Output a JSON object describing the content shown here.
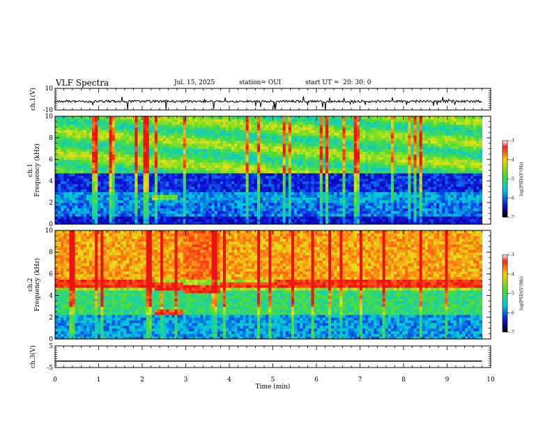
{
  "header": {
    "title": "VLF Spectra",
    "date": "Jul. 15, 2025",
    "station": "station= OUI",
    "start": "start UT =  20: 30: 0"
  },
  "chart_data": [
    {
      "type": "line",
      "panel": "ch1-waveform",
      "ylabel": "ch.1(V)",
      "ylim": [
        -10,
        10
      ],
      "yticks": [
        "10",
        "-10"
      ],
      "xlim": [
        0,
        10
      ],
      "note": "noisy waveform around -2 V with sporadic negative spikes"
    },
    {
      "type": "heatmap",
      "panel": "ch1-spectrogram",
      "ylabel_top": "ch.1",
      "ylabel": "Frequency (kHz)",
      "ylim": [
        0,
        10
      ],
      "yticks": [
        "0",
        "2",
        "4",
        "6",
        "8",
        "10"
      ],
      "xlim": [
        0,
        10
      ],
      "data_end_min": 9.8,
      "colorbar": {
        "label": "log(PSD)(V²/Hz)",
        "range": [
          -7,
          -3
        ],
        "ticks": [
          "-3",
          "-4",
          "-5",
          "-6",
          "-7"
        ]
      }
    },
    {
      "type": "heatmap",
      "panel": "ch2-spectrogram",
      "ylabel_top": "ch.2",
      "ylabel": "Frequency (kHz)",
      "ylim": [
        0,
        10
      ],
      "yticks": [
        "0",
        "2",
        "4",
        "6",
        "8",
        "10"
      ],
      "xlim": [
        0,
        10
      ],
      "data_end_min": 9.8,
      "colorbar": {
        "label": "log(PSD)(V²/Hz)",
        "range": [
          -7,
          -3
        ],
        "ticks": [
          "-3",
          "-4",
          "-5",
          "-6",
          "-7"
        ]
      }
    },
    {
      "type": "line",
      "panel": "ch3-waveform",
      "ylabel": "ch.3(V)",
      "ylim": [
        -5,
        5
      ],
      "yticks": [
        "5",
        "-5"
      ],
      "xlim": [
        0,
        10
      ],
      "constant_value": -2
    }
  ],
  "xaxis": {
    "label": "Time (min)",
    "ticks": [
      "0",
      "1",
      "2",
      "3",
      "4",
      "5",
      "6",
      "7",
      "8",
      "9",
      "10"
    ]
  },
  "colors": {
    "axis": "#000000",
    "background": "#ffffff"
  }
}
